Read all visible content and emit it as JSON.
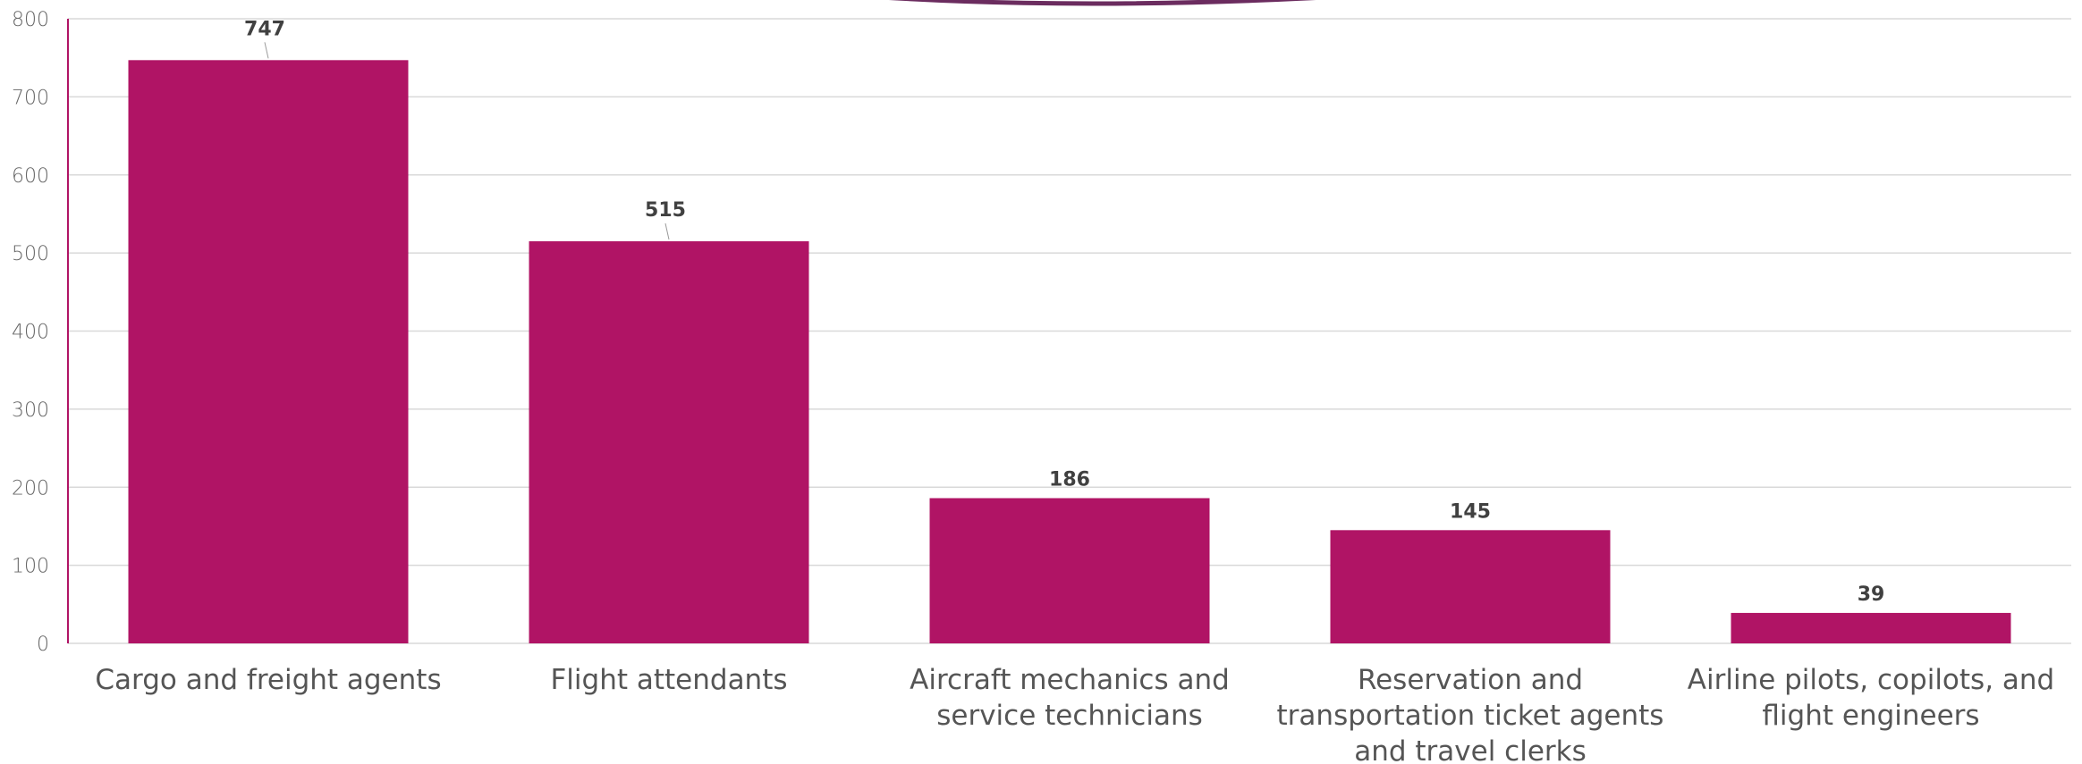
{
  "chart_data": {
    "type": "bar",
    "title": "",
    "xlabel": "",
    "ylabel": "",
    "categories": [
      "Cargo and freight agents",
      "Flight attendants",
      "Aircraft mechanics and service technicians",
      "Reservation and transportation ticket agents and travel clerks",
      "Airline pilots, copilots, and flight engineers"
    ],
    "category_lines": [
      [
        "Cargo and freight agents"
      ],
      [
        "Flight attendants"
      ],
      [
        "Aircraft mechanics and",
        "service technicians"
      ],
      [
        "Reservation and",
        "transportation ticket agents",
        "and travel clerks"
      ],
      [
        "Airline pilots, copilots, and",
        "flight engineers"
      ]
    ],
    "values": [
      747,
      515,
      186,
      145,
      39
    ],
    "data_labels": [
      "747",
      "515",
      "186",
      "145",
      "39"
    ],
    "ylim": [
      0,
      800
    ],
    "yticks": [
      0,
      100,
      200,
      300,
      400,
      500,
      600,
      700,
      800
    ],
    "grid": true,
    "legend": "none",
    "colors": {
      "bar": "#B01465",
      "axis": "#B01465",
      "grid": "#D9D9D9",
      "decoration": "#6B2C5F"
    }
  }
}
